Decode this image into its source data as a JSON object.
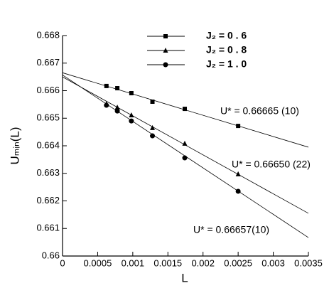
{
  "chart_data": {
    "type": "scatter",
    "x_label": "L",
    "y_label": "Uₘᵢₙ(L)",
    "x": [
      0.000625,
      0.00078,
      0.00098,
      0.00128,
      0.00174,
      0.0025
    ],
    "xlim": [
      0,
      0.0035
    ],
    "xticks": [
      0,
      0.0005,
      0.001,
      0.0015,
      0.002,
      0.0025,
      0.003,
      0.0035
    ],
    "ylim": [
      0.66,
      0.668
    ],
    "yticks": [
      0.66,
      0.661,
      0.662,
      0.663,
      0.664,
      0.665,
      0.666,
      0.667,
      0.668
    ],
    "legend": "top",
    "series": [
      {
        "name": "J₂ = 0 . 6",
        "color": "#000000",
        "marker": "square",
        "values": [
          0.66617,
          0.66609,
          0.66591,
          0.6656,
          0.66534,
          0.66472
        ],
        "fit_x": [
          0,
          0.0035
        ],
        "fit_values": [
          0.66665,
          0.66395
        ]
      },
      {
        "name": "J₂ = 0 . 8",
        "color": "#000000",
        "marker": "triangle",
        "values": [
          0.66552,
          0.66539,
          0.66511,
          0.66465,
          0.66408,
          0.66297
        ],
        "fit_x": [
          0,
          0.0035
        ],
        "fit_values": [
          0.6665,
          0.66155
        ]
      },
      {
        "name": "J₂ = 1 . 0",
        "color": "#000000",
        "marker": "circle",
        "values": [
          0.66547,
          0.66526,
          0.6649,
          0.66436,
          0.66356,
          0.66235
        ],
        "fit_x": [
          0,
          0.0035
        ],
        "fit_values": [
          0.66657,
          0.66067
        ]
      }
    ],
    "annotations": [
      "U* = 0.66665 (10)",
      "U* = 0.66650 (22)",
      "U* = 0.66657(10)"
    ]
  }
}
